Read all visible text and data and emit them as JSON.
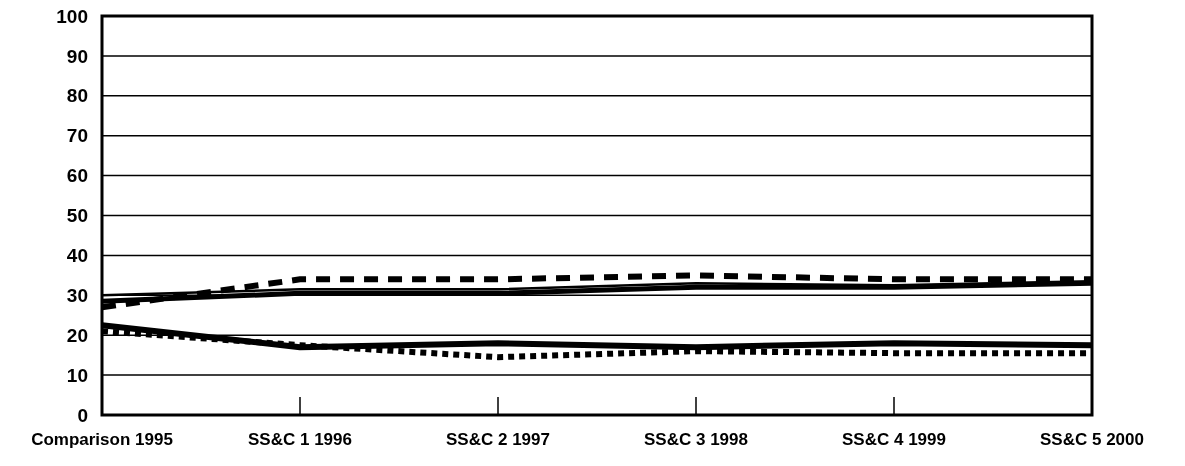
{
  "chart_data": {
    "type": "line",
    "categories": [
      "Comparison 1995",
      "SS&C 1 1996",
      "SS&C 2 1997",
      "SS&C 3 1998",
      "SS&C 4 1999",
      "SS&C 5 2000"
    ],
    "series": [
      {
        "color": "#000000",
        "line_style": "dashed",
        "values": [
          27,
          34,
          34,
          35,
          34,
          34
        ]
      },
      {
        "color": "#000000",
        "line_style": "solid",
        "values": [
          30,
          31.5,
          31.5,
          33,
          32.5,
          33.5
        ]
      },
      {
        "color": "#000000",
        "line_style": "solid",
        "values": [
          28.5,
          30.5,
          30.5,
          32,
          32,
          33
        ]
      },
      {
        "color": "#000000",
        "line_style": "solid",
        "values": [
          22.5,
          17,
          18,
          17,
          18,
          17.5
        ]
      },
      {
        "color": "#000000",
        "line_style": "dotted",
        "values": [
          21,
          17.5,
          14.5,
          16,
          15.5,
          15.5
        ]
      }
    ],
    "ylim": [
      0,
      100
    ],
    "yticks": [
      0,
      10,
      20,
      30,
      40,
      50,
      60,
      70,
      80,
      90,
      100
    ],
    "grid": "y",
    "marker": "none"
  }
}
